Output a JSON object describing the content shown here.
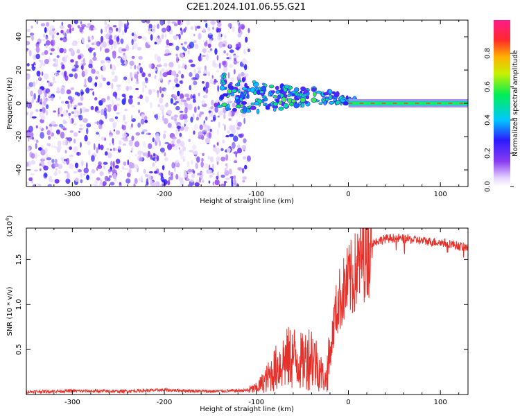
{
  "figure": {
    "title": "C2E1.2024.101.06.55.G21"
  },
  "chart_data": [
    {
      "type": "heatmap",
      "xlabel": "Height of straight line (km)",
      "ylabel": "Frequency (Hz)",
      "xlim": [
        -350,
        130
      ],
      "ylim": [
        -50,
        50
      ],
      "xticks": [
        -300,
        -200,
        -100,
        0,
        100
      ],
      "yticks": [
        -40,
        -20,
        0,
        20,
        40
      ],
      "colorbar": {
        "label": "Normalized spectral amplitude",
        "range": [
          0,
          1
        ],
        "ticks": [
          "0.0",
          "0.2",
          "0.4",
          "0.6",
          "0.8"
        ],
        "colormap": "white-purple-blue-cyan-green-yellow-orange-red-magenta"
      },
      "features": [
        {
          "description": "diffuse noise",
          "x_range": [
            -350,
            -108
          ],
          "freq_range": [
            -50,
            50
          ],
          "amplitude_range": [
            0.0,
            0.15
          ]
        },
        {
          "description": "converging signal",
          "x_range": [
            -140,
            10
          ],
          "freq_range": [
            -12,
            15
          ],
          "amplitude_range": [
            0.2,
            0.6
          ]
        },
        {
          "description": "steady tone",
          "x_range": [
            0,
            130
          ],
          "freq_hz": 0,
          "amplitude": 0.9
        }
      ]
    },
    {
      "type": "line",
      "xlabel": "Height of straight line (km)",
      "ylabel": "SNR (10 * v/v)",
      "scale_label": "(x10",
      "scale_exp": "4",
      "xlim": [
        -350,
        130
      ],
      "ylim": [
        0,
        18500
      ],
      "xticks": [
        -300,
        -200,
        -100,
        0,
        100
      ],
      "yticks": [
        0.5,
        1.0,
        1.5
      ],
      "ytick_labels": [
        "0.5",
        "1.0",
        "1.5"
      ],
      "series": [
        {
          "color": "#e8302a",
          "x": [
            -350,
            -300,
            -250,
            -200,
            -150,
            -110,
            -100,
            -90,
            -80,
            -70,
            -60,
            -50,
            -40,
            -30,
            -25,
            -20,
            -15,
            -10,
            -5,
            0,
            5,
            10,
            15,
            20,
            25,
            30,
            40,
            50,
            60,
            70,
            80,
            90,
            100,
            110,
            120,
            130
          ],
          "y": [
            300,
            400,
            350,
            500,
            350,
            450,
            700,
            1600,
            2800,
            3800,
            4200,
            3600,
            4500,
            2500,
            1500,
            4200,
            8500,
            10500,
            11500,
            12500,
            13000,
            14000,
            15500,
            16000,
            16800,
            17000,
            17300,
            17400,
            17300,
            17200,
            17100,
            17000,
            16900,
            16800,
            16500,
            16300
          ]
        }
      ]
    }
  ]
}
